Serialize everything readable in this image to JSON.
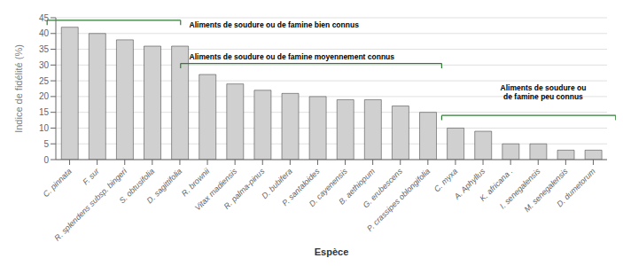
{
  "chart_data": {
    "type": "bar",
    "categories": [
      "C. pinnata",
      "F. sur",
      "R. splendens subsp. bingeri",
      "S. obtusifolia",
      "D. sagittifolia",
      "R. brownii",
      "Vitax madiensis",
      "R. palma-pinus",
      "D. bubifera",
      "P. santaloides",
      "D. cayenensis",
      "B. aethiopum",
      "G. erubescens",
      "P. crassipes oblongifolia",
      "C. myxa",
      "A. Aphyllus",
      "K. africana .",
      "I. senegalensis",
      "M. senegalensis",
      "D. dumetorum"
    ],
    "values": [
      42,
      40,
      38,
      36,
      36,
      27,
      24,
      22,
      21,
      20,
      19,
      19,
      17,
      15,
      10,
      9,
      5,
      5,
      3,
      3
    ],
    "color": "#d0d0d0",
    "xlabel": "Espèce",
    "ylabel": "Indice de fidélité (%)",
    "ylim": [
      0,
      45
    ],
    "yticks": [
      0,
      5,
      10,
      15,
      20,
      25,
      30,
      35,
      40,
      45
    ],
    "grid": true,
    "annotations": [
      {
        "text": "Aliments de soudure ou de famine bien connus",
        "color": "#2e7d32"
      },
      {
        "text": "Aliments de soudure ou de famine moyennement connus",
        "color": "#2e7d32"
      },
      {
        "text": "Aliments de soudure ou\nde famine peu connus",
        "color": "#2e7d32"
      }
    ]
  }
}
